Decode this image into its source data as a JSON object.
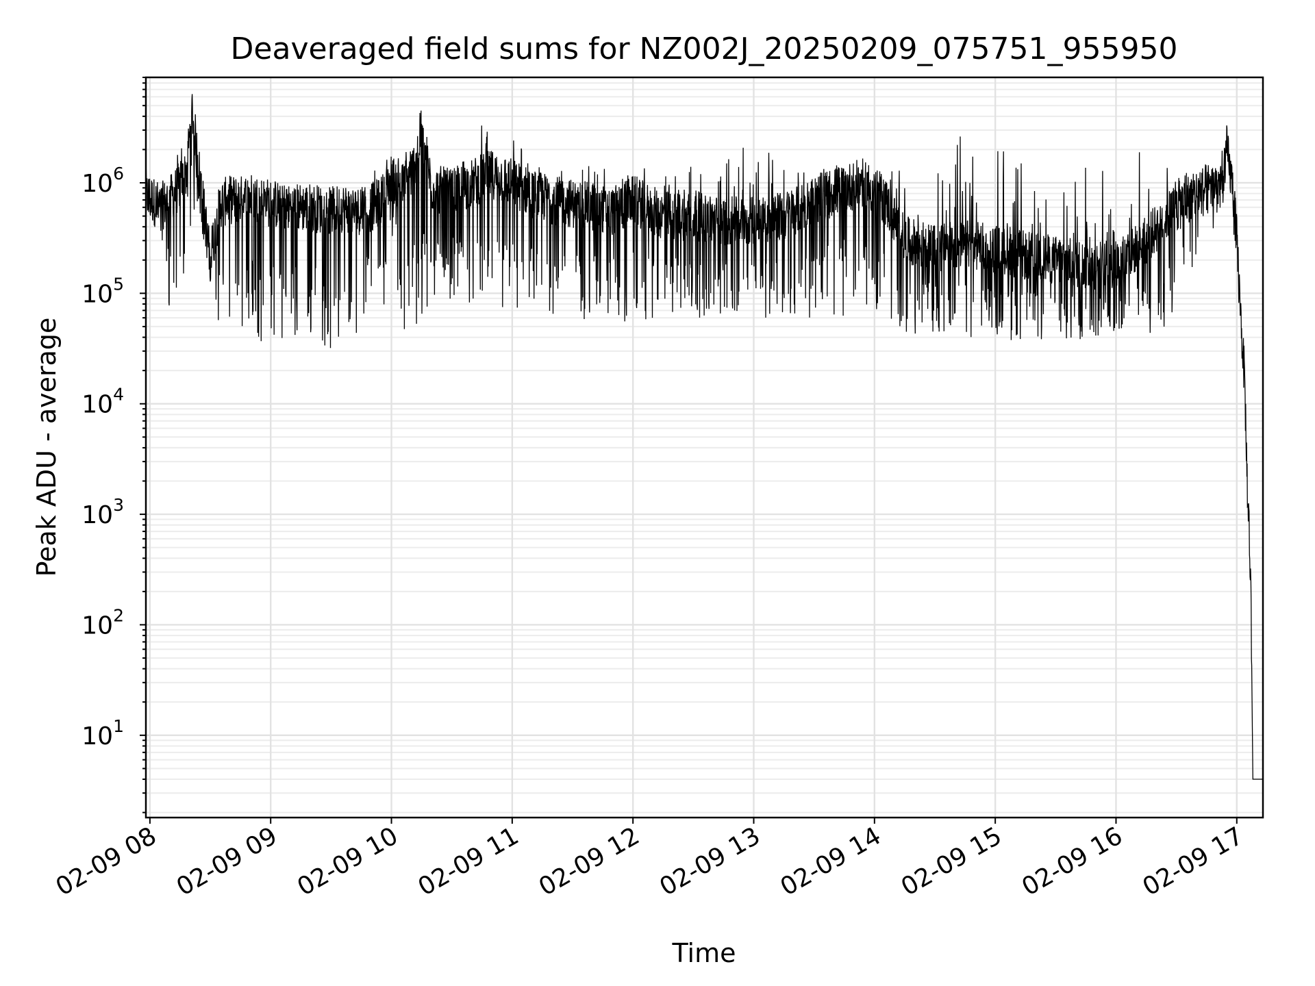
{
  "chart_data": {
    "type": "line",
    "title": "Deaveraged field sums for NZ002J_20250209_075751_955950",
    "xlabel": "Time",
    "ylabel": "Peak ADU - average",
    "x_scale": "time",
    "y_scale": "log",
    "xlim": [
      "2025-02-09 07:58",
      "2025-02-09 17:13"
    ],
    "ylim": [
      1.8,
      9000000
    ],
    "grid": true,
    "x_ticks": [
      "02-09 08",
      "02-09 09",
      "02-09 10",
      "02-09 11",
      "02-09 12",
      "02-09 13",
      "02-09 14",
      "02-09 15",
      "02-09 16",
      "02-09 17"
    ],
    "y_ticks": [
      {
        "value": 10,
        "base": "10",
        "exp": "1"
      },
      {
        "value": 100,
        "base": "10",
        "exp": "2"
      },
      {
        "value": 1000,
        "base": "10",
        "exp": "3"
      },
      {
        "value": 10000,
        "base": "10",
        "exp": "4"
      },
      {
        "value": 100000,
        "base": "10",
        "exp": "5"
      },
      {
        "value": 1000000,
        "base": "10",
        "exp": "6"
      }
    ],
    "series": [
      {
        "color": "#000000",
        "x": [
          "2025-02-09 07:58",
          "2025-02-09 08:05",
          "2025-02-09 08:10",
          "2025-02-09 08:14",
          "2025-02-09 08:18",
          "2025-02-09 08:21",
          "2025-02-09 08:24",
          "2025-02-09 08:30",
          "2025-02-09 08:35",
          "2025-02-09 08:40",
          "2025-02-09 08:45",
          "2025-02-09 08:50",
          "2025-02-09 08:55",
          "2025-02-09 09:00",
          "2025-02-09 09:10",
          "2025-02-09 09:20",
          "2025-02-09 09:30",
          "2025-02-09 09:36",
          "2025-02-09 09:42",
          "2025-02-09 09:50",
          "2025-02-09 09:55",
          "2025-02-09 10:00",
          "2025-02-09 10:05",
          "2025-02-09 10:10",
          "2025-02-09 10:15",
          "2025-02-09 10:20",
          "2025-02-09 10:30",
          "2025-02-09 10:40",
          "2025-02-09 10:45",
          "2025-02-09 10:50",
          "2025-02-09 11:00",
          "2025-02-09 11:10",
          "2025-02-09 11:20",
          "2025-02-09 11:30",
          "2025-02-09 11:40",
          "2025-02-09 11:50",
          "2025-02-09 12:00",
          "2025-02-09 12:15",
          "2025-02-09 12:30",
          "2025-02-09 12:45",
          "2025-02-09 13:00",
          "2025-02-09 13:15",
          "2025-02-09 13:30",
          "2025-02-09 13:45",
          "2025-02-09 13:55",
          "2025-02-09 14:05",
          "2025-02-09 14:15",
          "2025-02-09 14:30",
          "2025-02-09 14:45",
          "2025-02-09 15:00",
          "2025-02-09 15:15",
          "2025-02-09 15:30",
          "2025-02-09 15:45",
          "2025-02-09 16:00",
          "2025-02-09 16:15",
          "2025-02-09 16:25",
          "2025-02-09 16:35",
          "2025-02-09 16:45",
          "2025-02-09 16:52",
          "2025-02-09 16:55",
          "2025-02-09 16:58",
          "2025-02-09 17:00",
          "2025-02-09 17:02",
          "2025-02-09 17:04",
          "2025-02-09 17:05",
          "2025-02-09 17:06",
          "2025-02-09 17:07",
          "2025-02-09 17:08",
          "2025-02-09 17:13"
        ],
        "values": [
          800000,
          600000,
          700000,
          900000,
          1200000,
          4500000,
          1500000,
          200000,
          650000,
          700000,
          700000,
          750000,
          700000,
          650000,
          600000,
          600000,
          550000,
          600000,
          550000,
          600000,
          700000,
          1100000,
          900000,
          1200000,
          3000000,
          900000,
          800000,
          1000000,
          1100000,
          1200000,
          1000000,
          800000,
          700000,
          650000,
          600000,
          550000,
          700000,
          500000,
          500000,
          450000,
          450000,
          500000,
          700000,
          900000,
          1000000,
          700000,
          300000,
          250000,
          280000,
          250000,
          220000,
          200000,
          180000,
          180000,
          300000,
          500000,
          700000,
          900000,
          1000000,
          2000000,
          900000,
          300000,
          60000,
          15000,
          2500,
          900,
          200,
          4,
          4
        ],
        "low_values": [
          500000,
          400000,
          55000,
          60000,
          200000,
          400000,
          700000,
          90000,
          40000,
          35000,
          40000,
          40000,
          35000,
          40000,
          35000,
          40000,
          30000,
          28000,
          40000,
          100000,
          50000,
          300000,
          40000,
          40000,
          40000,
          80000,
          90000,
          80000,
          90000,
          70000,
          60000,
          60000,
          60000,
          60000,
          55000,
          55000,
          50000,
          60000,
          60000,
          60000,
          60000,
          60000,
          60000,
          60000,
          70000,
          50000,
          45000,
          40000,
          40000,
          40000,
          35000,
          35000,
          35000,
          40000,
          40000,
          50000,
          100000,
          300000,
          500000,
          600000,
          400000,
          200000,
          30000,
          8000,
          1500,
          500,
          100,
          4,
          4
        ],
        "high_values": [
          1100000,
          900000,
          1300000,
          2000000,
          2500000,
          4500000,
          1600000,
          800000,
          900000,
          900000,
          900000,
          900000,
          900000,
          950000,
          950000,
          950000,
          950000,
          950000,
          900000,
          1200000,
          1500000,
          3000000,
          2000000,
          3500000,
          3800000,
          1500000,
          1200000,
          2000000,
          3500000,
          2500000,
          3300000,
          1500000,
          1200000,
          1400000,
          1500000,
          1300000,
          1400000,
          1300000,
          1500000,
          1500000,
          3300000,
          1600000,
          1700000,
          1600000,
          1500000,
          1300000,
          1500000,
          1800000,
          3000000,
          2300000,
          1500000,
          1400000,
          1400000,
          1500000,
          2300000,
          1400000,
          1300000,
          1400000,
          1600000,
          2000000,
          1800000,
          400000,
          80000,
          18000,
          3000,
          1200,
          300,
          4,
          4
        ]
      }
    ]
  }
}
